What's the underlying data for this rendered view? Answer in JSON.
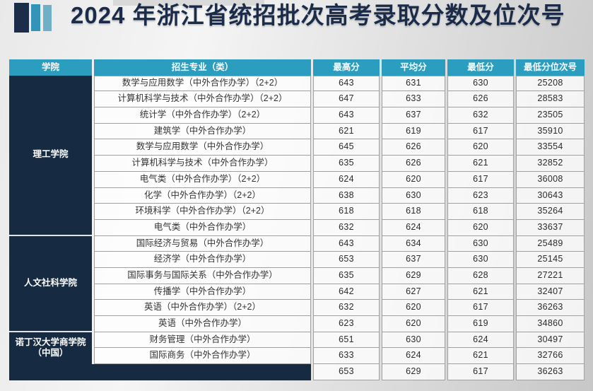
{
  "page": {
    "title": "2024 年浙江省统招批次高考录取分数及位次号"
  },
  "logo": {
    "bar_colors": [
      "#1b2d49",
      "#3493b8",
      "#6fb0c6"
    ]
  },
  "colors": {
    "header_bg": "#2b9dbf",
    "college_bg": "#162a42",
    "title_text": "#1b2b4a",
    "cell_border": "#a0a0a0"
  },
  "table": {
    "headers": [
      "学院",
      "招生专业（类）",
      "最高分",
      "平均分",
      "最低分",
      "最低分位次号"
    ],
    "sections": [
      {
        "college": "理工学院",
        "rows": [
          {
            "major": "数学与应用数学（中外合作办学）（2+2）",
            "max": "643",
            "avg": "631",
            "min": "630",
            "rank": "25208"
          },
          {
            "major": "计算机科学与技术（中外合作办学）（2+2）",
            "max": "647",
            "avg": "633",
            "min": "626",
            "rank": "28583"
          },
          {
            "major": "统计学（中外合作办学）（2+2）",
            "max": "643",
            "avg": "637",
            "min": "632",
            "rank": "23505"
          },
          {
            "major": "建筑学（中外合作办学）",
            "max": "621",
            "avg": "619",
            "min": "617",
            "rank": "35910"
          },
          {
            "major": "数学与应用数学（中外合作办学）",
            "max": "645",
            "avg": "626",
            "min": "620",
            "rank": "33554"
          },
          {
            "major": "计算机科学与技术（中外合作办学）",
            "max": "635",
            "avg": "626",
            "min": "621",
            "rank": "32852"
          },
          {
            "major": "电气类（中外合作办学）（2+2）",
            "max": "624",
            "avg": "620",
            "min": "617",
            "rank": "36008"
          },
          {
            "major": "化学（中外合作办学）（2+2）",
            "max": "638",
            "avg": "630",
            "min": "623",
            "rank": "30643"
          },
          {
            "major": "环境科学（中外合作办学）（2+2）",
            "max": "618",
            "avg": "618",
            "min": "618",
            "rank": "35264"
          },
          {
            "major": "电气类（中外合作办学）",
            "max": "632",
            "avg": "624",
            "min": "620",
            "rank": "33637"
          }
        ]
      },
      {
        "college": "人文社科学院",
        "rows": [
          {
            "major": "国际经济与贸易（中外合作办学）",
            "max": "643",
            "avg": "634",
            "min": "630",
            "rank": "25489"
          },
          {
            "major": "经济学（中外合作办学）",
            "max": "653",
            "avg": "637",
            "min": "630",
            "rank": "25145"
          },
          {
            "major": "国际事务与国际关系（中外合作办学）",
            "max": "635",
            "avg": "629",
            "min": "628",
            "rank": "27221"
          },
          {
            "major": "传播学（中外合作办学）",
            "max": "642",
            "avg": "627",
            "min": "621",
            "rank": "32407"
          },
          {
            "major": "英语（中外合作办学）（2+2）",
            "max": "632",
            "avg": "620",
            "min": "617",
            "rank": "36263"
          },
          {
            "major": "英语（中外合作办学）",
            "max": "623",
            "avg": "620",
            "min": "619",
            "rank": "34860"
          }
        ]
      },
      {
        "college": "诺丁汉大学商学院（中国）",
        "rows": [
          {
            "major": "财务管理（中外合作办学）",
            "max": "651",
            "avg": "630",
            "min": "624",
            "rank": "30497"
          },
          {
            "major": "国际商务（中外合作办学）",
            "max": "633",
            "avg": "624",
            "min": "621",
            "rank": "32766"
          }
        ]
      }
    ],
    "summary": {
      "max": "653",
      "avg": "629",
      "min": "617",
      "rank": "36263"
    }
  }
}
